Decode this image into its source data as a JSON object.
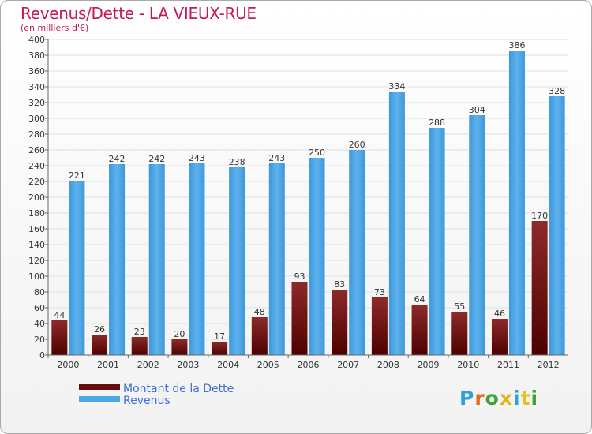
{
  "title": "Revenus/Dette - LA VIEUX-RUE",
  "subtitle": "(en milliers d'€)",
  "logo": {
    "text": "Proxiti",
    "colors": [
      "#2d9ee0",
      "#e36c1b",
      "#3aa53a",
      "#e3b21b",
      "#2d9ee0",
      "#e3c21b",
      "#3aa53a"
    ]
  },
  "legend": [
    {
      "label": "Montant de la Dette",
      "color": "#6b0c0c"
    },
    {
      "label": "Revenus",
      "color": "#4aa8e8"
    }
  ],
  "chart_data": {
    "type": "bar",
    "title": "Revenus/Dette - LA VIEUX-RUE",
    "ylabel": "(en milliers d'€)",
    "ylim": [
      0,
      400
    ],
    "ytick_step": 20,
    "grid": true,
    "legend_position": "bottom-left",
    "categories": [
      "2000",
      "2001",
      "2002",
      "2003",
      "2004",
      "2005",
      "2006",
      "2007",
      "2008",
      "2009",
      "2010",
      "2011",
      "2012"
    ],
    "series": [
      {
        "name": "Montant de la Dette",
        "color": "#6b0c0c",
        "values": [
          44,
          26,
          23,
          20,
          17,
          48,
          93,
          83,
          73,
          64,
          55,
          46,
          170
        ]
      },
      {
        "name": "Revenus",
        "color": "#4aa8e8",
        "values": [
          221,
          242,
          242,
          243,
          238,
          243,
          250,
          260,
          334,
          288,
          304,
          386,
          328
        ]
      }
    ]
  }
}
